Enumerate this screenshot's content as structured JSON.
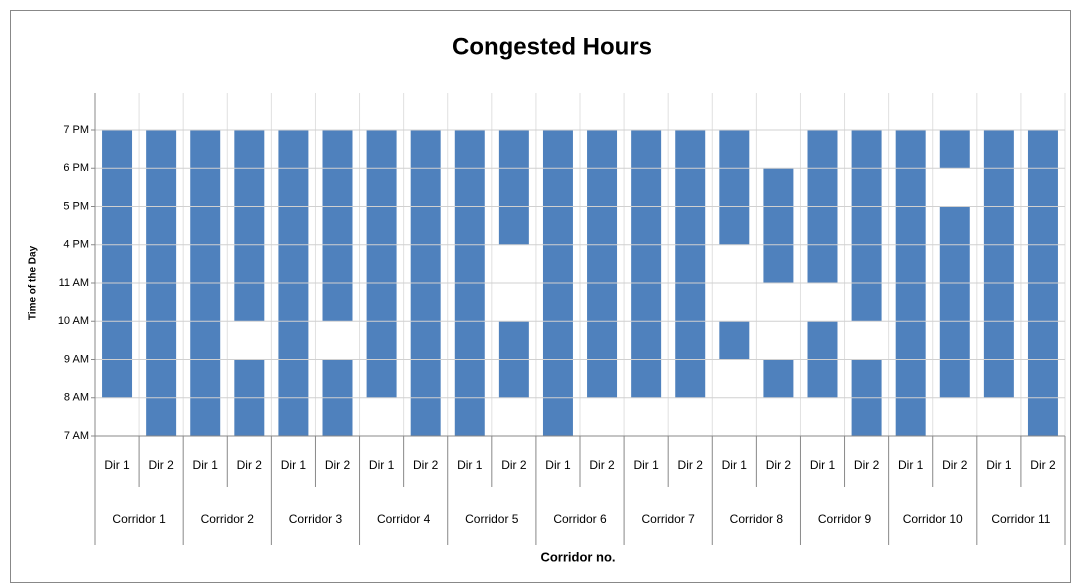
{
  "chart_data": {
    "type": "range-bar",
    "title": "Congested Hours",
    "y_label": "Time of the Day",
    "x_label": "Corridor no.",
    "color": "#4f81bd",
    "groups": [
      "Corridor 1",
      "Corridor 2",
      "Corridor 3",
      "Corridor 4",
      "Corridor 5",
      "Corridor 6",
      "Corridor 7",
      "Corridor 8",
      "Corridor 9",
      "Corridor 10",
      "Corridor 11"
    ],
    "categories": [
      "Dir 1",
      "Dir 2",
      "Dir 1",
      "Dir 2",
      "Dir 1",
      "Dir 2",
      "Dir 1",
      "Dir 2",
      "Dir 1",
      "Dir 2",
      "Dir 1",
      "Dir 2",
      "Dir 1",
      "Dir 2",
      "Dir 1",
      "Dir 2",
      "Dir 1",
      "Dir 2",
      "Dir 1",
      "Dir 2",
      "Dir 1",
      "Dir 2"
    ],
    "bars": [
      [
        [
          1,
          8
        ]
      ],
      [
        [
          0,
          8
        ]
      ],
      [
        [
          0,
          8
        ]
      ],
      [
        [
          0,
          2
        ],
        [
          3,
          8
        ]
      ],
      [
        [
          0,
          8
        ]
      ],
      [
        [
          0,
          2
        ],
        [
          3,
          8
        ]
      ],
      [
        [
          1,
          8
        ]
      ],
      [
        [
          0,
          8
        ]
      ],
      [
        [
          0,
          8
        ]
      ],
      [
        [
          1,
          3
        ],
        [
          5,
          8
        ]
      ],
      [
        [
          0,
          8
        ]
      ],
      [
        [
          1,
          8
        ]
      ],
      [
        [
          1,
          8
        ]
      ],
      [
        [
          1,
          8
        ]
      ],
      [
        [
          2,
          3
        ],
        [
          5,
          8
        ]
      ],
      [
        [
          1,
          2
        ],
        [
          4,
          7
        ]
      ],
      [
        [
          1,
          3
        ],
        [
          4,
          8
        ]
      ],
      [
        [
          0,
          2
        ],
        [
          3,
          8
        ]
      ],
      [
        [
          0,
          8
        ]
      ],
      [
        [
          1,
          6
        ],
        [
          7,
          8
        ]
      ],
      [
        [
          1,
          8
        ]
      ],
      [
        [
          0,
          8
        ]
      ]
    ],
    "ylim": [
      0,
      8
    ],
    "yticks": [
      {
        "value": 0,
        "label": "7 AM"
      },
      {
        "value": 1,
        "label": "8 AM"
      },
      {
        "value": 2,
        "label": "9 AM"
      },
      {
        "value": 3,
        "label": "10 AM"
      },
      {
        "value": 4,
        "label": "11 AM"
      },
      {
        "value": 5,
        "label": "4 PM"
      },
      {
        "value": 6,
        "label": "5 PM"
      },
      {
        "value": 7,
        "label": "6 PM"
      },
      {
        "value": 8,
        "label": "7 PM"
      }
    ],
    "grid": true
  }
}
